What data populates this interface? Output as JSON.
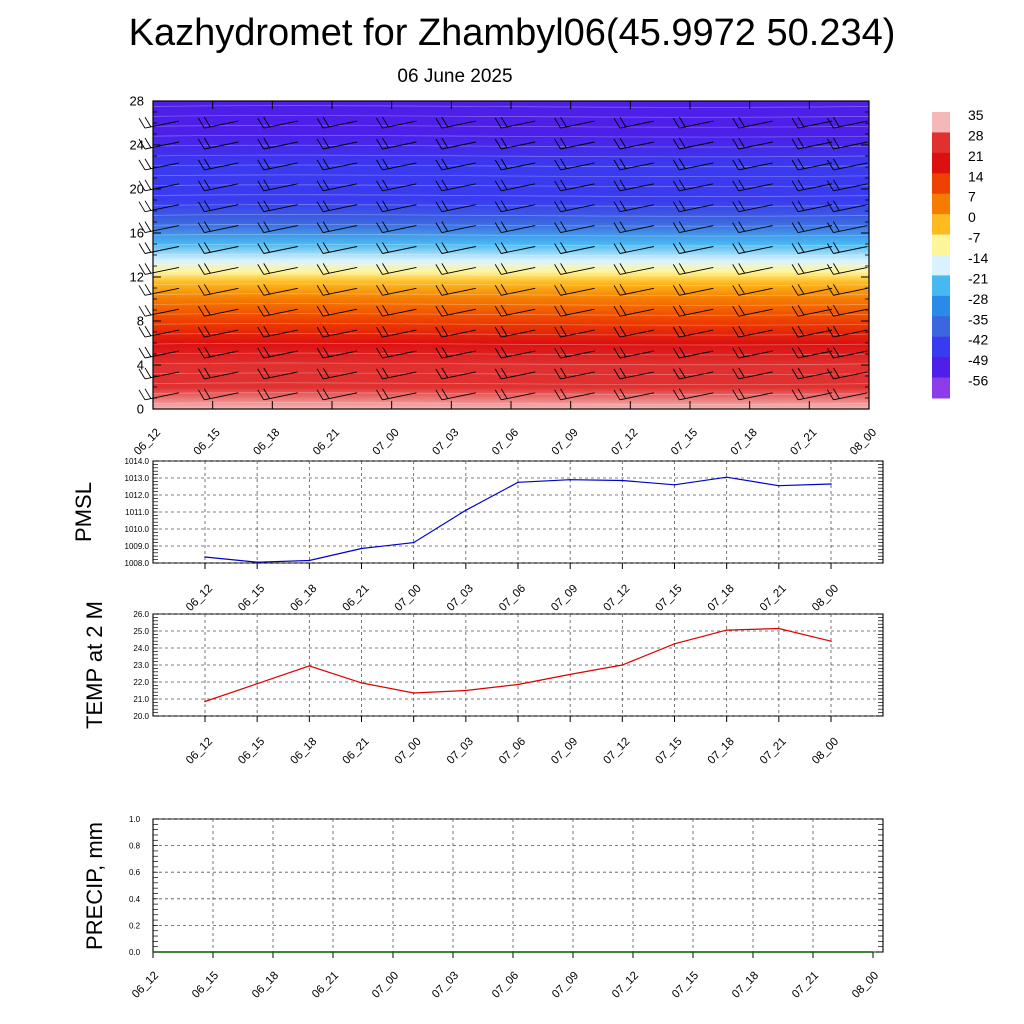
{
  "title": "Kazhydromet for Zhambyl06(45.9972 50.234)",
  "subtitle": "06 June 2025",
  "chart_data": [
    {
      "type": "heatmap",
      "description_of_fill": "temperature field with wind barbs",
      "x_ticks": [
        "06_12",
        "06_15",
        "06_18",
        "06_21",
        "07_00",
        "07_03",
        "07_06",
        "07_09",
        "07_12",
        "07_15",
        "07_18",
        "07_21",
        "08_00"
      ],
      "y_ticks": [
        "0",
        "4",
        "8",
        "12",
        "16",
        "20",
        "24",
        "28"
      ],
      "ylim": [
        0,
        28
      ],
      "colorbar": {
        "labels": [
          "35",
          "28",
          "21",
          "14",
          "7",
          "0",
          "-7",
          "-14",
          "-21",
          "-28",
          "-35",
          "-42",
          "-49",
          "-56"
        ],
        "colors": [
          "#f5b8b8",
          "#e03030",
          "#dd1010",
          "#ee4000",
          "#f57c00",
          "#fdbb20",
          "#fff59a",
          "#d9f2ff",
          "#48b8f0",
          "#2a8ae8",
          "#3c66e0",
          "#3a3bf0",
          "#4d1fe8",
          "#8a3de8"
        ]
      },
      "temperature_profile": {
        "heights": [
          0,
          2,
          4,
          6,
          8,
          10,
          11.5,
          12.5,
          13.5,
          15,
          17,
          19,
          22,
          25,
          28
        ],
        "values": [
          30,
          27,
          22,
          16,
          10,
          4,
          -3,
          -8,
          -15,
          -25,
          -38,
          -45,
          -48,
          -52,
          -56
        ]
      }
    },
    {
      "type": "line",
      "ylabel": "PMSL",
      "x": [
        "06_12",
        "06_15",
        "06_18",
        "06_21",
        "07_00",
        "07_03",
        "07_06",
        "07_09",
        "07_12",
        "07_15",
        "07_18",
        "07_21",
        "08_00"
      ],
      "values": [
        1008.35,
        1008.05,
        1008.15,
        1008.85,
        1009.2,
        1011.1,
        1012.75,
        1012.9,
        1012.85,
        1012.6,
        1013.05,
        1012.55,
        1012.65
      ],
      "ylim": [
        1008.0,
        1014.0
      ],
      "y_ticks": [
        "1008.0",
        "1009.0",
        "1010.0",
        "1011.0",
        "1012.0",
        "1013.0",
        "1014.0"
      ],
      "color": "#0000cc"
    },
    {
      "type": "line",
      "ylabel": "TEMP at 2 M",
      "x": [
        "06_12",
        "06_15",
        "06_18",
        "06_21",
        "07_00",
        "07_03",
        "07_06",
        "07_09",
        "07_12",
        "07_15",
        "07_18",
        "07_21",
        "08_00"
      ],
      "values": [
        20.85,
        21.9,
        22.95,
        21.95,
        21.35,
        21.5,
        21.85,
        22.45,
        23.0,
        24.25,
        25.05,
        25.15,
        24.4
      ],
      "ylim": [
        20.0,
        26.0
      ],
      "y_ticks": [
        "20.0",
        "21.0",
        "22.0",
        "23.0",
        "24.0",
        "25.0",
        "26.0"
      ],
      "color": "#dd0000"
    },
    {
      "type": "line",
      "ylabel": "PRECIP, mm",
      "x": [
        "06_12",
        "06_15",
        "06_18",
        "06_21",
        "07_00",
        "07_03",
        "07_06",
        "07_09",
        "07_12",
        "07_15",
        "07_18",
        "07_21",
        "08_00"
      ],
      "values": [
        0,
        0,
        0,
        0,
        0,
        0,
        0,
        0,
        0,
        0,
        0,
        0,
        0
      ],
      "ylim": [
        0.0,
        1.0
      ],
      "y_ticks": [
        "0.0",
        "0.2",
        "0.4",
        "0.6",
        "0.8",
        "1.0"
      ],
      "color": "#006600"
    }
  ]
}
